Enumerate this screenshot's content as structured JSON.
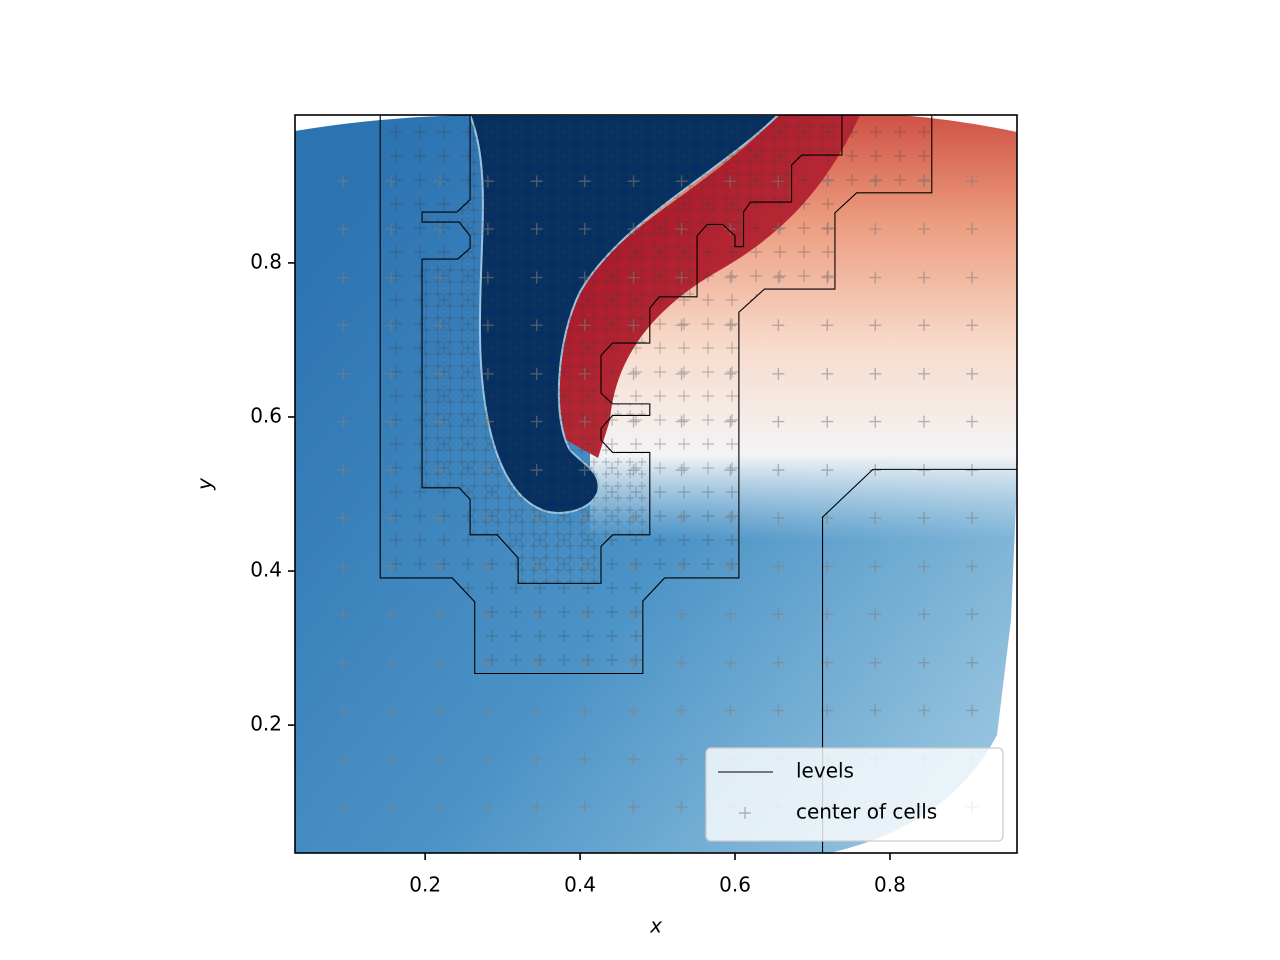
{
  "chart_data": {
    "type": "scatter",
    "xlabel": "x",
    "ylabel": "y",
    "xlim": [
      0.032,
      0.964
    ],
    "ylim": [
      0.034,
      0.992
    ],
    "xticks": [
      0.2,
      0.4,
      0.6,
      0.8
    ],
    "yticks": [
      0.2,
      0.4,
      0.6,
      0.8
    ],
    "legend": "lower right",
    "series": [
      {
        "name": "levels",
        "type": "line",
        "color": "#000000",
        "x": [
          0.142,
          0.142,
          0.235,
          0.264,
          0.264,
          0.481,
          0.481,
          0.509,
          0.605,
          0.605,
          0.638,
          0.729,
          0.729,
          0.757,
          0.854,
          0.854,
          null,
          0.258,
          0.258,
          0.241,
          0.196,
          0.196,
          0.244,
          0.258,
          0.258,
          0.242,
          0.196,
          0.196,
          0.244,
          0.258,
          0.258,
          0.293,
          0.32,
          0.32,
          0.427,
          0.427,
          0.442,
          0.49,
          0.49,
          0.442,
          0.427,
          0.427,
          0.442,
          0.49,
          0.49,
          0.442,
          0.427,
          0.427,
          0.442,
          0.49,
          0.49,
          0.502,
          0.551,
          0.551,
          0.564,
          0.584,
          0.6,
          0.6,
          0.611,
          0.611,
          0.62,
          0.673,
          0.673,
          0.686,
          0.738,
          0.738,
          null,
          0.713,
          0.713,
          0.778,
          0.964
        ],
        "y": [
          0.992,
          0.391,
          0.391,
          0.36,
          0.267,
          0.267,
          0.361,
          0.391,
          0.391,
          0.736,
          0.766,
          0.766,
          0.865,
          0.891,
          0.891,
          0.992,
          null,
          0.992,
          0.882,
          0.866,
          0.866,
          0.853,
          0.853,
          0.835,
          0.819,
          0.805,
          0.805,
          0.508,
          0.508,
          0.493,
          0.447,
          0.447,
          0.417,
          0.384,
          0.384,
          0.432,
          0.447,
          0.447,
          0.554,
          0.554,
          0.57,
          0.585,
          0.602,
          0.602,
          0.617,
          0.617,
          0.631,
          0.68,
          0.696,
          0.696,
          0.741,
          0.756,
          0.756,
          0.835,
          0.85,
          0.85,
          0.835,
          0.821,
          0.821,
          0.866,
          0.879,
          0.879,
          0.927,
          0.94,
          0.94,
          0.992,
          null,
          0.034,
          0.47,
          0.532,
          0.532
        ]
      },
      {
        "name": "center of cells",
        "type": "scatter",
        "color": "#808080",
        "x": [
          0.094,
          0.156,
          0.219,
          0.281,
          0.344,
          0.406,
          0.469,
          0.531,
          0.594,
          0.656,
          0.719,
          0.781,
          0.844,
          0.906,
          0.094,
          0.156,
          0.219,
          0.281,
          0.344,
          0.406,
          0.469,
          0.531,
          0.594,
          0.656,
          0.719,
          0.781,
          0.844,
          0.906,
          0.094,
          0.156,
          0.219,
          0.281,
          0.344,
          0.406,
          0.469,
          0.531,
          0.594,
          0.656,
          0.719,
          0.781,
          0.844,
          0.906,
          0.094,
          0.156,
          0.219,
          0.281,
          0.344,
          0.406,
          0.469,
          0.531,
          0.594,
          0.656,
          0.719,
          0.781,
          0.844,
          0.906,
          0.094,
          0.156,
          0.219,
          0.281,
          0.344,
          0.406,
          0.469,
          0.531,
          0.594,
          0.656,
          0.719,
          0.781,
          0.844,
          0.906,
          0.094,
          0.156,
          0.219,
          0.281,
          0.344,
          0.406,
          0.469,
          0.531,
          0.594,
          0.656,
          0.719,
          0.781,
          0.844,
          0.906,
          0.094,
          0.156,
          0.219,
          0.281,
          0.344,
          0.406,
          0.469,
          0.531,
          0.594,
          0.656,
          0.719,
          0.781,
          0.844,
          0.906,
          0.094,
          0.156,
          0.219,
          0.281,
          0.344,
          0.406,
          0.469,
          0.531,
          0.594,
          0.656,
          0.719,
          0.781,
          0.844,
          0.906,
          0.094,
          0.156,
          0.219,
          0.281,
          0.344,
          0.406,
          0.469,
          0.531,
          0.594,
          0.656,
          0.719,
          0.781,
          0.844,
          0.906,
          0.094,
          0.156,
          0.219,
          0.281,
          0.344,
          0.406,
          0.469,
          0.531,
          0.594,
          0.656,
          0.719,
          0.781,
          0.844,
          0.906,
          0.094,
          0.156,
          0.219,
          0.281,
          0.344,
          0.406,
          0.469,
          0.531,
          0.594,
          0.656,
          0.719,
          0.781,
          0.844,
          0.906,
          0.094,
          0.156,
          0.219,
          0.281,
          0.344,
          0.406,
          0.469,
          0.531,
          0.594,
          0.656,
          0.719,
          0.781,
          0.844,
          0.906,
          0.094,
          0.156,
          0.219,
          0.281,
          0.344,
          0.406,
          0.469,
          0.531,
          0.594,
          0.656,
          0.719,
          0.781,
          0.844,
          0.906,
          0.094,
          0.156,
          0.219,
          0.281,
          0.344,
          0.406,
          0.469,
          0.531,
          0.594,
          0.656,
          0.719,
          0.781,
          0.844,
          0.906
        ],
        "y": [
          0.094,
          0.094,
          0.094,
          0.094,
          0.094,
          0.094,
          0.094,
          0.094,
          0.094,
          0.094,
          0.094,
          0.094,
          0.094,
          0.094,
          0.156,
          0.156,
          0.156,
          0.156,
          0.156,
          0.156,
          0.156,
          0.156,
          0.156,
          0.156,
          0.156,
          0.156,
          0.156,
          0.156,
          0.219,
          0.219,
          0.219,
          0.219,
          0.219,
          0.219,
          0.219,
          0.219,
          0.219,
          0.219,
          0.219,
          0.219,
          0.219,
          0.219,
          0.281,
          0.281,
          0.281,
          0.281,
          0.281,
          0.281,
          0.281,
          0.281,
          0.281,
          0.281,
          0.281,
          0.281,
          0.281,
          0.281,
          0.344,
          0.344,
          0.344,
          0.344,
          0.344,
          0.344,
          0.344,
          0.344,
          0.344,
          0.344,
          0.344,
          0.344,
          0.344,
          0.344,
          0.406,
          0.406,
          0.406,
          0.406,
          0.406,
          0.406,
          0.406,
          0.406,
          0.406,
          0.406,
          0.406,
          0.406,
          0.406,
          0.406,
          0.469,
          0.469,
          0.469,
          0.469,
          0.469,
          0.469,
          0.469,
          0.469,
          0.469,
          0.469,
          0.469,
          0.469,
          0.469,
          0.469,
          0.531,
          0.531,
          0.531,
          0.531,
          0.531,
          0.531,
          0.531,
          0.531,
          0.531,
          0.531,
          0.531,
          0.531,
          0.531,
          0.531,
          0.594,
          0.594,
          0.594,
          0.594,
          0.594,
          0.594,
          0.594,
          0.594,
          0.594,
          0.594,
          0.594,
          0.594,
          0.594,
          0.594,
          0.656,
          0.656,
          0.656,
          0.656,
          0.656,
          0.656,
          0.656,
          0.656,
          0.656,
          0.656,
          0.656,
          0.656,
          0.656,
          0.656,
          0.719,
          0.719,
          0.719,
          0.719,
          0.719,
          0.719,
          0.719,
          0.719,
          0.719,
          0.719,
          0.719,
          0.719,
          0.719,
          0.719,
          0.781,
          0.781,
          0.781,
          0.781,
          0.781,
          0.781,
          0.781,
          0.781,
          0.781,
          0.781,
          0.781,
          0.781,
          0.781,
          0.781,
          0.844,
          0.844,
          0.844,
          0.844,
          0.844,
          0.844,
          0.844,
          0.844,
          0.844,
          0.844,
          0.844,
          0.844,
          0.844,
          0.844,
          0.906,
          0.906,
          0.906,
          0.906,
          0.906,
          0.906,
          0.906,
          0.906,
          0.906,
          0.906,
          0.906,
          0.906,
          0.906,
          0.906
        ]
      }
    ]
  }
}
